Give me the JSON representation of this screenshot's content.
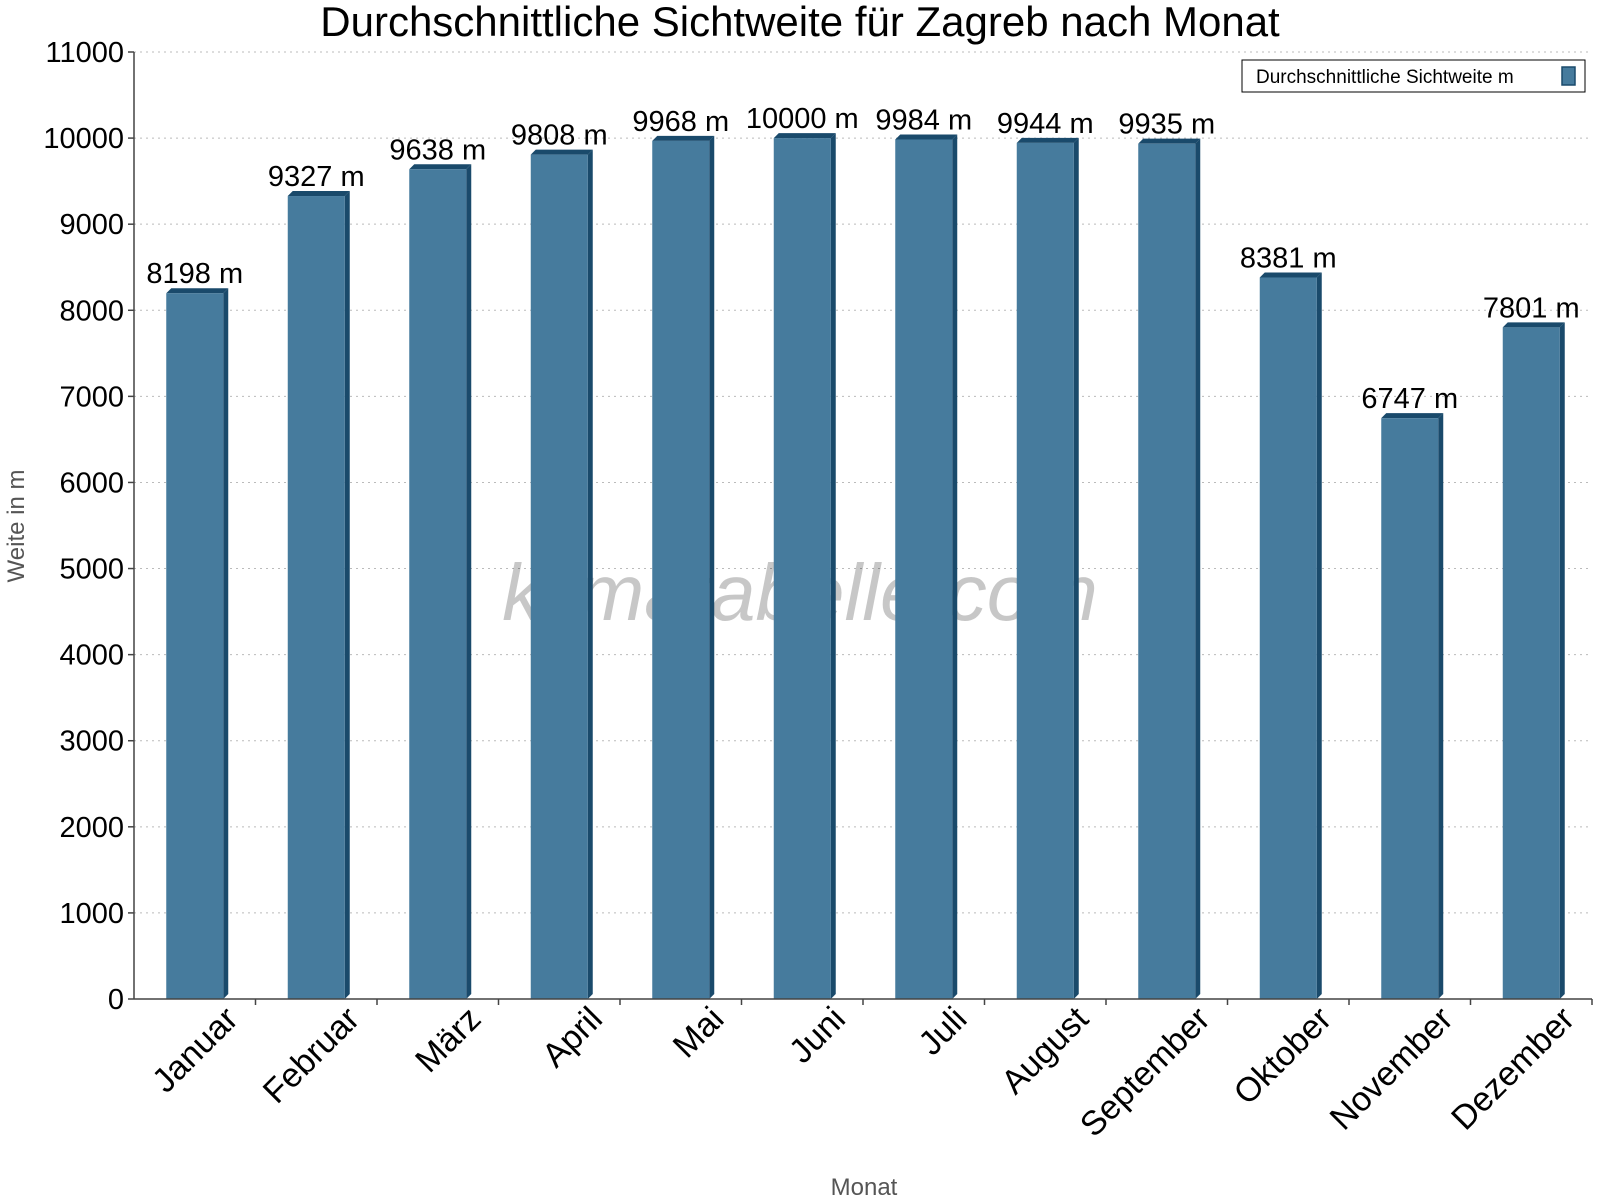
{
  "chart_data": {
    "type": "bar",
    "title": "Durchschnittliche Sichtweite für Zagreb nach Monat",
    "xlabel": "Monat",
    "ylabel": "Weite in m",
    "ylim": [
      0,
      11000
    ],
    "yticks": [
      0,
      1000,
      2000,
      3000,
      4000,
      5000,
      6000,
      7000,
      8000,
      9000,
      10000,
      11000
    ],
    "grid": true,
    "legend_position": "top-right",
    "categories": [
      "Januar",
      "Februar",
      "März",
      "April",
      "Mai",
      "Juni",
      "Juli",
      "August",
      "September",
      "Oktober",
      "November",
      "Dezember"
    ],
    "series": [
      {
        "name": "Durchschnittliche Sichtweite m",
        "values": [
          8198,
          9327,
          9638,
          9808,
          9968,
          10000,
          9984,
          9944,
          9935,
          8381,
          6747,
          7801
        ],
        "labels": [
          "8198 m",
          "9327 m",
          "9638 m",
          "9808 m",
          "9968 m",
          "10000 m",
          "9984 m",
          "9944 m",
          "9935 m",
          "8381 m",
          "6747 m",
          "7801 m"
        ],
        "color": "#467b9d",
        "edge_color": "#1a4a6b"
      }
    ],
    "watermark": "klimatabelle.com"
  }
}
